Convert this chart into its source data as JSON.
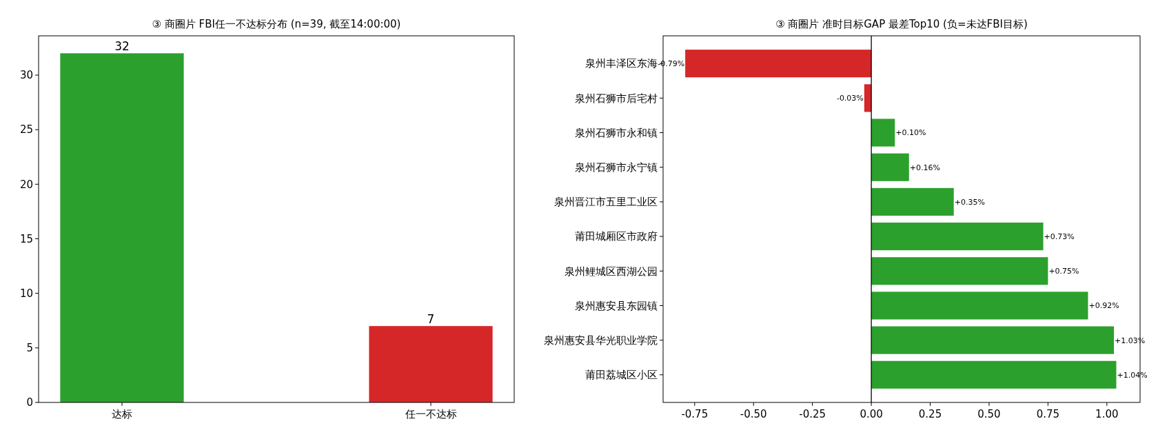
{
  "chart_data": [
    {
      "type": "bar",
      "title": "③ 商圈片 FBI任一不达标分布 (n=39, 截至14:00:00)",
      "categories": [
        "达标",
        "任一不达标"
      ],
      "values": [
        32,
        7
      ],
      "colors": [
        "#2ca02c",
        "#d62728"
      ],
      "ylim": [
        0,
        33.6
      ],
      "yticks": [
        0,
        5,
        10,
        15,
        20,
        25,
        30
      ],
      "data_labels": true,
      "grid": false
    },
    {
      "type": "bar",
      "orientation": "horizontal",
      "title": "③ 商圈片 准时目标GAP 最差Top10 (负=未达FBI目标)",
      "categories": [
        "泉州丰泽区东海",
        "泉州石狮市后宅村",
        "泉州石狮市永和镇",
        "泉州石狮市永宁镇",
        "泉州晋江市五里工业区",
        "莆田城厢区市政府",
        "泉州鲤城区西湖公园",
        "泉州惠安县东园镇",
        "泉州惠安县华光职业学院",
        "莆田荔城区小区"
      ],
      "values": [
        -0.79,
        -0.03,
        0.1,
        0.16,
        0.35,
        0.73,
        0.75,
        0.92,
        1.03,
        1.04
      ],
      "value_labels": [
        "-0.79%",
        "-0.03%",
        "+0.10%",
        "+0.16%",
        "+0.35%",
        "+0.73%",
        "+0.75%",
        "+0.92%",
        "+1.03%",
        "+1.04%"
      ],
      "colors": [
        "#d62728",
        "#d62728",
        "#2ca02c",
        "#2ca02c",
        "#2ca02c",
        "#2ca02c",
        "#2ca02c",
        "#2ca02c",
        "#2ca02c",
        "#2ca02c"
      ],
      "xlim": [
        -0.884,
        1.141
      ],
      "xticks": [
        {
          "value": -0.75,
          "label": "-0.75"
        },
        {
          "value": -0.5,
          "label": "-0.50"
        },
        {
          "value": -0.25,
          "label": "-0.25"
        },
        {
          "value": 0,
          "label": "0.00"
        },
        {
          "value": 0.25,
          "label": "0.25"
        },
        {
          "value": 0.5,
          "label": "0.50"
        },
        {
          "value": 0.75,
          "label": "0.75"
        },
        {
          "value": 1,
          "label": "1.00"
        }
      ],
      "ref_lines": [
        {
          "axis": "x",
          "value": 0,
          "color": "#000000"
        }
      ],
      "grid": false
    }
  ]
}
